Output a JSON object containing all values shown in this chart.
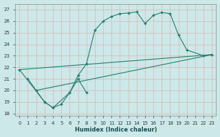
{
  "bg_color": "#cce8e8",
  "grid_color": "#b0d8d8",
  "line_color": "#2a8070",
  "xlabel": "Humidex (Indice chaleur)",
  "xlim": [
    -0.5,
    23.5
  ],
  "ylim": [
    17.8,
    27.5
  ],
  "xticks": [
    0,
    1,
    2,
    3,
    4,
    5,
    6,
    7,
    8,
    9,
    10,
    11,
    12,
    13,
    14,
    15,
    16,
    17,
    18,
    19,
    20,
    21,
    22,
    23
  ],
  "yticks": [
    18,
    19,
    20,
    21,
    22,
    23,
    24,
    25,
    26,
    27
  ],
  "series": [
    {
      "x": [
        0,
        3,
        4,
        5,
        6,
        7,
        8,
        9,
        10,
        11,
        12,
        13,
        14,
        15,
        16,
        17,
        18,
        19,
        20,
        22,
        23
      ],
      "y": [
        21.8,
        19.0,
        18.5,
        18.8,
        19.8,
        21.3,
        22.3,
        25.2,
        26.0,
        26.4,
        26.65,
        26.7,
        26.8,
        25.8,
        26.5,
        26.75,
        26.65,
        24.8,
        23.5,
        23.0,
        23.1
      ]
    },
    {
      "x": [
        1,
        2,
        3,
        4,
        6,
        7,
        8
      ],
      "y": [
        21.0,
        20.0,
        19.0,
        18.5,
        19.8,
        21.0,
        19.8
      ]
    },
    {
      "x": [
        0,
        23
      ],
      "y": [
        21.8,
        23.1
      ]
    },
    {
      "x": [
        2,
        23
      ],
      "y": [
        20.0,
        23.1
      ]
    }
  ]
}
